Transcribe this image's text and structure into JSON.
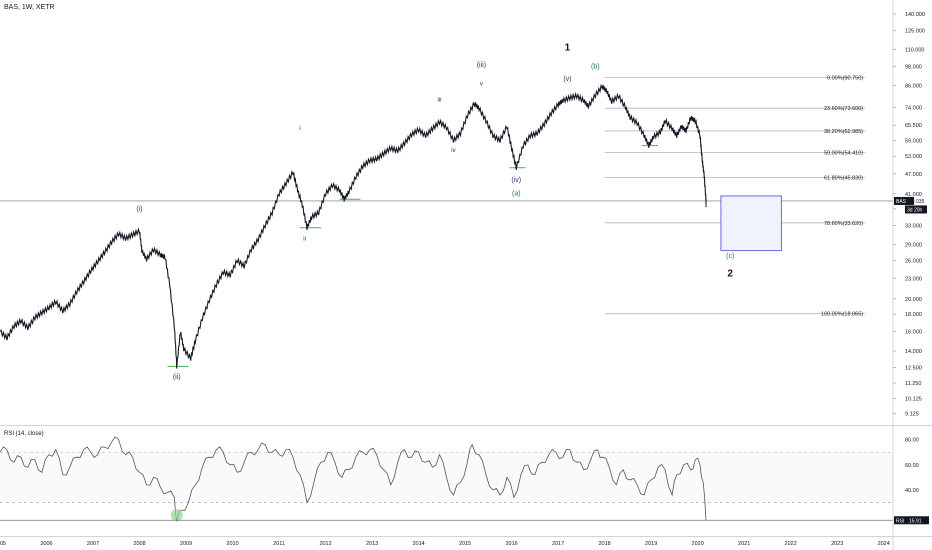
{
  "header": {
    "symbol_title": "BAS, 1W, XETR"
  },
  "rsi": {
    "title": "RSI (14, close)",
    "ticks": [
      80,
      60,
      40
    ],
    "last_label": "RSI",
    "last_value": "15.91",
    "values": [
      [
        2005.0,
        70
      ],
      [
        2005.15,
        72
      ],
      [
        2005.3,
        62
      ],
      [
        2005.45,
        66
      ],
      [
        2005.6,
        58
      ],
      [
        2005.75,
        64
      ],
      [
        2005.9,
        54
      ],
      [
        2006.05,
        68
      ],
      [
        2006.2,
        72
      ],
      [
        2006.35,
        52
      ],
      [
        2006.5,
        58
      ],
      [
        2006.65,
        66
      ],
      [
        2006.8,
        72
      ],
      [
        2006.95,
        70
      ],
      [
        2007.1,
        68
      ],
      [
        2007.25,
        74
      ],
      [
        2007.4,
        78
      ],
      [
        2007.55,
        80
      ],
      [
        2007.7,
        68
      ],
      [
        2007.85,
        66
      ],
      [
        2008.0,
        54
      ],
      [
        2008.15,
        44
      ],
      [
        2008.3,
        50
      ],
      [
        2008.45,
        42
      ],
      [
        2008.6,
        38
      ],
      [
        2008.75,
        34
      ],
      [
        2008.8,
        15
      ],
      [
        2008.9,
        24
      ],
      [
        2009.05,
        30
      ],
      [
        2009.2,
        44
      ],
      [
        2009.35,
        58
      ],
      [
        2009.5,
        66
      ],
      [
        2009.65,
        72
      ],
      [
        2009.8,
        70
      ],
      [
        2009.95,
        60
      ],
      [
        2010.1,
        54
      ],
      [
        2010.25,
        62
      ],
      [
        2010.4,
        70
      ],
      [
        2010.55,
        72
      ],
      [
        2010.7,
        76
      ],
      [
        2010.85,
        70
      ],
      [
        2011.0,
        68
      ],
      [
        2011.15,
        72
      ],
      [
        2011.3,
        66
      ],
      [
        2011.45,
        52
      ],
      [
        2011.6,
        30
      ],
      [
        2011.75,
        46
      ],
      [
        2011.9,
        62
      ],
      [
        2012.05,
        70
      ],
      [
        2012.2,
        62
      ],
      [
        2012.35,
        50
      ],
      [
        2012.5,
        56
      ],
      [
        2012.65,
        66
      ],
      [
        2012.8,
        70
      ],
      [
        2012.95,
        72
      ],
      [
        2013.1,
        68
      ],
      [
        2013.25,
        56
      ],
      [
        2013.4,
        44
      ],
      [
        2013.55,
        62
      ],
      [
        2013.7,
        72
      ],
      [
        2013.85,
        66
      ],
      [
        2014.0,
        70
      ],
      [
        2014.15,
        62
      ],
      [
        2014.3,
        58
      ],
      [
        2014.45,
        68
      ],
      [
        2014.6,
        50
      ],
      [
        2014.75,
        36
      ],
      [
        2014.9,
        46
      ],
      [
        2015.05,
        62
      ],
      [
        2015.15,
        76
      ],
      [
        2015.3,
        68
      ],
      [
        2015.45,
        52
      ],
      [
        2015.6,
        40
      ],
      [
        2015.75,
        36
      ],
      [
        2015.9,
        50
      ],
      [
        2016.05,
        34
      ],
      [
        2016.2,
        52
      ],
      [
        2016.35,
        60
      ],
      [
        2016.5,
        52
      ],
      [
        2016.65,
        62
      ],
      [
        2016.8,
        68
      ],
      [
        2016.95,
        70
      ],
      [
        2017.1,
        66
      ],
      [
        2017.25,
        72
      ],
      [
        2017.4,
        62
      ],
      [
        2017.55,
        56
      ],
      [
        2017.7,
        64
      ],
      [
        2017.85,
        72
      ],
      [
        2017.95,
        66
      ],
      [
        2018.1,
        58
      ],
      [
        2018.25,
        44
      ],
      [
        2018.4,
        56
      ],
      [
        2018.55,
        48
      ],
      [
        2018.7,
        44
      ],
      [
        2018.85,
        36
      ],
      [
        2019.0,
        48
      ],
      [
        2019.15,
        58
      ],
      [
        2019.3,
        56
      ],
      [
        2019.45,
        36
      ],
      [
        2019.55,
        52
      ],
      [
        2019.7,
        60
      ],
      [
        2019.85,
        56
      ],
      [
        2019.95,
        64
      ],
      [
        2020.05,
        60
      ],
      [
        2020.12,
        46
      ],
      [
        2020.18,
        15.91
      ]
    ]
  },
  "chart_data": {
    "type": "line",
    "style": "weekly price bars with Elliott-wave annotations",
    "x_axis": {
      "ticks": [
        "2005",
        "2006",
        "2007",
        "2008",
        "2009",
        "2010",
        "2011",
        "2012",
        "2013",
        "2014",
        "2015",
        "2016",
        "2017",
        "2018",
        "2019",
        "2020",
        "2021",
        "2022",
        "2023",
        "2024"
      ],
      "range": [
        2005,
        2024.2
      ]
    },
    "y_axis": {
      "scale": "log",
      "ticks": [
        "140.000",
        "125.000",
        "110.000",
        "98.000",
        "86.000",
        "74.000",
        "65.500",
        "59.000",
        "53.000",
        "47.000",
        "41.000",
        "37.000",
        "33.000",
        "29.000",
        "26.000",
        "23.000",
        "20.000",
        "18.000",
        "16.000",
        "14.000",
        "12.500",
        "11.250",
        "10.125",
        "9.125"
      ]
    },
    "last_price": {
      "label": "BAS",
      "value": "39.035",
      "countdown": "3d 20h",
      "level": 39.035
    },
    "series": [
      {
        "name": "",
        "values": [
          [
            2005.0,
            16.0
          ],
          [
            2005.15,
            15.3
          ],
          [
            2005.3,
            16.6
          ],
          [
            2005.45,
            17.2
          ],
          [
            2005.6,
            16.4
          ],
          [
            2005.75,
            17.6
          ],
          [
            2005.9,
            18.2
          ],
          [
            2006.05,
            18.8
          ],
          [
            2006.2,
            19.6
          ],
          [
            2006.35,
            18.4
          ],
          [
            2006.5,
            19.3
          ],
          [
            2006.65,
            21.0
          ],
          [
            2006.8,
            22.5
          ],
          [
            2006.95,
            24.2
          ],
          [
            2007.1,
            25.8
          ],
          [
            2007.25,
            27.5
          ],
          [
            2007.4,
            29.5
          ],
          [
            2007.55,
            31.2
          ],
          [
            2007.7,
            30.2
          ],
          [
            2007.85,
            31.0
          ],
          [
            2008.0,
            31.8
          ],
          [
            2008.05,
            27.8
          ],
          [
            2008.15,
            26.2
          ],
          [
            2008.3,
            28.0
          ],
          [
            2008.45,
            27.0
          ],
          [
            2008.55,
            26.6
          ],
          [
            2008.65,
            22.0
          ],
          [
            2008.75,
            16.5
          ],
          [
            2008.8,
            12.6
          ],
          [
            2008.88,
            16.0
          ],
          [
            2008.95,
            14.2
          ],
          [
            2009.1,
            13.3
          ],
          [
            2009.2,
            15.0
          ],
          [
            2009.35,
            17.5
          ],
          [
            2009.5,
            19.8
          ],
          [
            2009.65,
            22.0
          ],
          [
            2009.8,
            24.0
          ],
          [
            2009.95,
            23.5
          ],
          [
            2010.1,
            26.0
          ],
          [
            2010.25,
            25.0
          ],
          [
            2010.4,
            28.0
          ],
          [
            2010.55,
            30.0
          ],
          [
            2010.7,
            33.0
          ],
          [
            2010.85,
            36.0
          ],
          [
            2011.0,
            41.0
          ],
          [
            2011.15,
            44.0
          ],
          [
            2011.3,
            47.5
          ],
          [
            2011.4,
            42.0
          ],
          [
            2011.5,
            38.0
          ],
          [
            2011.6,
            32.5
          ],
          [
            2011.7,
            35.0
          ],
          [
            2011.85,
            36.0
          ],
          [
            2012.0,
            41.0
          ],
          [
            2012.15,
            43.5
          ],
          [
            2012.3,
            42.0
          ],
          [
            2012.4,
            39.5
          ],
          [
            2012.5,
            41.5
          ],
          [
            2012.65,
            46.0
          ],
          [
            2012.8,
            49.5
          ],
          [
            2012.95,
            51.5
          ],
          [
            2013.1,
            52.0
          ],
          [
            2013.25,
            54.0
          ],
          [
            2013.4,
            56.0
          ],
          [
            2013.55,
            55.0
          ],
          [
            2013.7,
            58.0
          ],
          [
            2013.85,
            61.5
          ],
          [
            2014.0,
            63.5
          ],
          [
            2014.15,
            61.0
          ],
          [
            2014.3,
            64.0
          ],
          [
            2014.45,
            67.0
          ],
          [
            2014.6,
            64.5
          ],
          [
            2014.75,
            59.0
          ],
          [
            2014.9,
            62.0
          ],
          [
            2015.05,
            70.0
          ],
          [
            2015.2,
            76.0
          ],
          [
            2015.3,
            73.5
          ],
          [
            2015.45,
            67.5
          ],
          [
            2015.6,
            61.0
          ],
          [
            2015.75,
            59.0
          ],
          [
            2015.9,
            65.0
          ],
          [
            2016.0,
            56.0
          ],
          [
            2016.1,
            49.0
          ],
          [
            2016.25,
            57.0
          ],
          [
            2016.4,
            61.0
          ],
          [
            2016.55,
            62.0
          ],
          [
            2016.7,
            66.0
          ],
          [
            2016.85,
            71.0
          ],
          [
            2017.0,
            75.5
          ],
          [
            2017.1,
            77.5
          ],
          [
            2017.25,
            79.0
          ],
          [
            2017.4,
            80.0
          ],
          [
            2017.55,
            77.5
          ],
          [
            2017.65,
            74.5
          ],
          [
            2017.8,
            80.5
          ],
          [
            2017.95,
            85.5
          ],
          [
            2018.05,
            82.5
          ],
          [
            2018.15,
            77.0
          ],
          [
            2018.3,
            80.0
          ],
          [
            2018.45,
            74.0
          ],
          [
            2018.55,
            69.0
          ],
          [
            2018.7,
            66.5
          ],
          [
            2018.85,
            61.0
          ],
          [
            2018.95,
            57.0
          ],
          [
            2019.05,
            60.5
          ],
          [
            2019.2,
            62.5
          ],
          [
            2019.3,
            67.5
          ],
          [
            2019.45,
            64.0
          ],
          [
            2019.55,
            61.0
          ],
          [
            2019.65,
            65.0
          ],
          [
            2019.75,
            63.0
          ],
          [
            2019.85,
            69.0
          ],
          [
            2019.95,
            67.5
          ],
          [
            2020.05,
            61.0
          ],
          [
            2020.1,
            51.5
          ],
          [
            2020.14,
            46.5
          ],
          [
            2020.18,
            39.0
          ]
        ]
      }
    ],
    "annotations": [
      {
        "text": "1",
        "x": 2017.2,
        "y": 109,
        "color": "#131722",
        "size": 10
      },
      {
        "text": "(v)",
        "x": 2017.2,
        "y": 88.5,
        "color": "#2a2e6f",
        "size": 7
      },
      {
        "text": "(b)",
        "x": 2017.8,
        "y": 96.5,
        "color": "#1e7f4a",
        "size": 7
      },
      {
        "text": "(iii)",
        "x": 2015.35,
        "y": 97.5,
        "color": "#2a2e6f",
        "size": 7
      },
      {
        "text": "v",
        "x": 2015.35,
        "y": 86,
        "color": "#2a2e6f",
        "size": 6
      },
      {
        "text": "iii",
        "x": 2014.45,
        "y": 77,
        "color": "#2a2e6f",
        "size": 6
      },
      {
        "text": "iv",
        "x": 2014.75,
        "y": 54.5,
        "color": "#2a2e6f",
        "size": 6
      },
      {
        "text": "(iv)",
        "x": 2016.1,
        "y": 44.5,
        "color": "#2a2e6f",
        "size": 7
      },
      {
        "text": "(a)",
        "x": 2016.1,
        "y": 40.5,
        "color": "#1e7f4a",
        "size": 7
      },
      {
        "text": "i",
        "x": 2011.45,
        "y": 63.5,
        "color": "#2a2e6f",
        "size": 6
      },
      {
        "text": "ii",
        "x": 2011.55,
        "y": 29.8,
        "color": "#2a2e6f",
        "size": 6
      },
      {
        "text": "(i)",
        "x": 2008.0,
        "y": 36.5,
        "color": "#2a2e6f",
        "size": 7
      },
      {
        "text": "(ii)",
        "x": 2008.8,
        "y": 11.55,
        "color": "#2a2e6f",
        "size": 7
      },
      {
        "text": "(c)",
        "x": 2020.7,
        "y": 26.4,
        "color": "#1e7f4a",
        "size": 7
      },
      {
        "text": "2",
        "x": 2020.7,
        "y": 23.3,
        "color": "#131722",
        "size": 10
      }
    ],
    "markers": [
      {
        "x_from": 2008.6,
        "x_to": 2009.05,
        "y": 12.6
      },
      {
        "x_from": 2011.45,
        "x_to": 2011.9,
        "y": 32.5
      },
      {
        "x_from": 2012.3,
        "x_to": 2012.75,
        "y": 39.5
      },
      {
        "x_from": 2015.95,
        "x_to": 2016.3,
        "y": 49.0
      },
      {
        "x_from": 2018.8,
        "x_to": 2019.15,
        "y": 57.0
      }
    ],
    "fib_levels": [
      {
        "label": "0.00%(90.750)",
        "value": 90.75
      },
      {
        "label": "23.60%(73.600)",
        "value": 73.6
      },
      {
        "label": "38.20%(62.985)",
        "value": 62.985
      },
      {
        "label": "50.00%(54.410)",
        "value": 54.41
      },
      {
        "label": "61.80%(45.830)",
        "value": 45.83
      },
      {
        "label": "78.60%(33.620)",
        "value": 33.62
      },
      {
        "label": "100.00%(18.065)",
        "value": 18.065
      }
    ],
    "target_box": {
      "x_from": 2020.5,
      "x_to": 2021.8,
      "y_from": 40.4,
      "y_to": 27.8
    },
    "colors": {
      "price": "#131722",
      "rsi": "#555555",
      "fib_line": "#b2b5be",
      "box_border": "#5b5be0",
      "box_fill": "#eef3fd",
      "marker": "#4caf50"
    },
    "grid": false,
    "legend": "none"
  }
}
